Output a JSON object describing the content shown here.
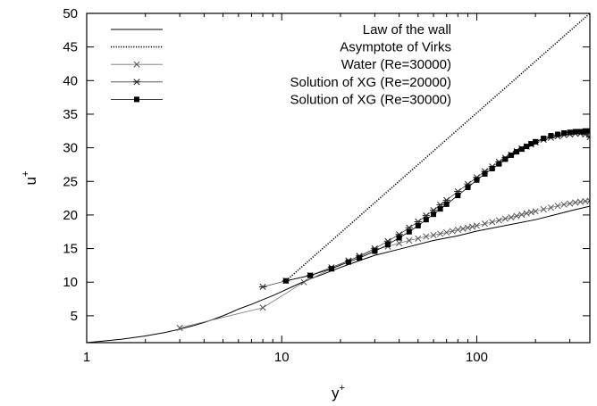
{
  "chart_data": {
    "type": "line",
    "xlabel": "y",
    "xlabel_superscript": "+",
    "ylabel": "u",
    "ylabel_superscript": "+",
    "x_scale": "log",
    "xlim": [
      1,
      380
    ],
    "ylim": [
      1,
      50
    ],
    "grid": false,
    "legend_position": "top-left",
    "x_ticks": [
      {
        "value": 1,
        "label": "1"
      },
      {
        "value": 10,
        "label": "10"
      },
      {
        "value": 100,
        "label": "100"
      }
    ],
    "y_ticks": [
      {
        "value": 5,
        "label": "5"
      },
      {
        "value": 10,
        "label": "10"
      },
      {
        "value": 15,
        "label": "15"
      },
      {
        "value": 20,
        "label": "20"
      },
      {
        "value": 25,
        "label": "25"
      },
      {
        "value": 30,
        "label": "30"
      },
      {
        "value": 35,
        "label": "35"
      },
      {
        "value": 40,
        "label": "40"
      },
      {
        "value": 45,
        "label": "45"
      },
      {
        "value": 50,
        "label": "50"
      }
    ],
    "series": [
      {
        "name": "Law of the wall",
        "style": "solid",
        "marker": "none",
        "x": [
          1,
          1.5,
          2,
          2.5,
          3,
          3.5,
          4,
          4.5,
          5,
          5.5,
          6,
          7,
          8,
          9,
          10,
          11,
          12,
          14,
          16,
          20,
          25,
          30,
          40,
          60,
          80,
          100,
          150,
          200,
          250,
          300,
          380
        ],
        "y": [
          1.0,
          1.5,
          2.0,
          2.5,
          3.0,
          3.5,
          4.0,
          4.5,
          5.0,
          5.5,
          6.0,
          6.7,
          7.4,
          8.0,
          8.6,
          9.15,
          9.65,
          10.5,
          11.1,
          12.2,
          13.2,
          14.0,
          14.9,
          16.2,
          16.9,
          17.6,
          18.6,
          19.3,
          20.0,
          20.6,
          21.3
        ]
      },
      {
        "name": "Asymptote of Virks",
        "style": "dotted",
        "marker": "none",
        "x": [
          10.8,
          380
        ],
        "y": [
          10.5,
          50
        ]
      },
      {
        "name": "Water (Re=30000)",
        "style": "solid",
        "marker": "x",
        "x": [
          3,
          8,
          13,
          18,
          22,
          25,
          30,
          35,
          40,
          45,
          50,
          55,
          60,
          65,
          70,
          75,
          80,
          85,
          90,
          95,
          100,
          110,
          120,
          130,
          140,
          150,
          160,
          170,
          180,
          190,
          200,
          220,
          240,
          260,
          280,
          300,
          320,
          340,
          360,
          380
        ],
        "y": [
          3.2,
          6.2,
          10.0,
          12.0,
          13.2,
          13.8,
          14.8,
          15.3,
          15.8,
          16.2,
          16.5,
          16.8,
          17.0,
          17.2,
          17.4,
          17.6,
          17.8,
          17.95,
          18.1,
          18.25,
          18.4,
          18.7,
          18.95,
          19.2,
          19.45,
          19.65,
          19.85,
          20.05,
          20.25,
          20.4,
          20.55,
          20.85,
          21.1,
          21.35,
          21.55,
          21.7,
          21.85,
          21.95,
          22.05,
          22.1
        ]
      },
      {
        "name": "Solution of XG (Re=20000)",
        "style": "solid",
        "marker": "*",
        "x": [
          8,
          10.5,
          14,
          18,
          22,
          25,
          30,
          35,
          40,
          45,
          50,
          55,
          60,
          65,
          70,
          80,
          90,
          100,
          110,
          120,
          130,
          140,
          150,
          160,
          170,
          180,
          190,
          200,
          220,
          240,
          260,
          280,
          300,
          320,
          340,
          360,
          380
        ],
        "y": [
          9.3,
          10.2,
          11.0,
          12.2,
          13.2,
          13.9,
          15.0,
          16.1,
          17.1,
          18.1,
          19.0,
          19.9,
          20.7,
          21.5,
          22.2,
          23.5,
          24.6,
          25.6,
          26.5,
          27.2,
          27.9,
          28.5,
          29.0,
          29.5,
          29.9,
          30.2,
          30.5,
          30.8,
          31.2,
          31.5,
          31.7,
          31.9,
          32.0,
          32.1,
          32.1,
          32.0,
          31.6
        ]
      },
      {
        "name": "Solution of XG (Re=30000)",
        "style": "solid",
        "marker": "square",
        "x": [
          10.5,
          14,
          18,
          22,
          25,
          30,
          35,
          40,
          45,
          50,
          55,
          60,
          65,
          70,
          80,
          90,
          100,
          110,
          120,
          130,
          140,
          150,
          160,
          170,
          180,
          190,
          200,
          220,
          240,
          260,
          280,
          300,
          320,
          340,
          360,
          380
        ],
        "y": [
          10.2,
          11.0,
          12.0,
          13.0,
          13.6,
          14.6,
          15.6,
          16.6,
          17.5,
          18.4,
          19.3,
          20.1,
          20.9,
          21.6,
          22.9,
          24.1,
          25.2,
          26.1,
          26.9,
          27.6,
          28.3,
          28.9,
          29.4,
          29.8,
          30.2,
          30.6,
          30.9,
          31.4,
          31.8,
          32.0,
          32.2,
          32.3,
          32.4,
          32.4,
          32.5,
          32.5
        ]
      }
    ]
  }
}
